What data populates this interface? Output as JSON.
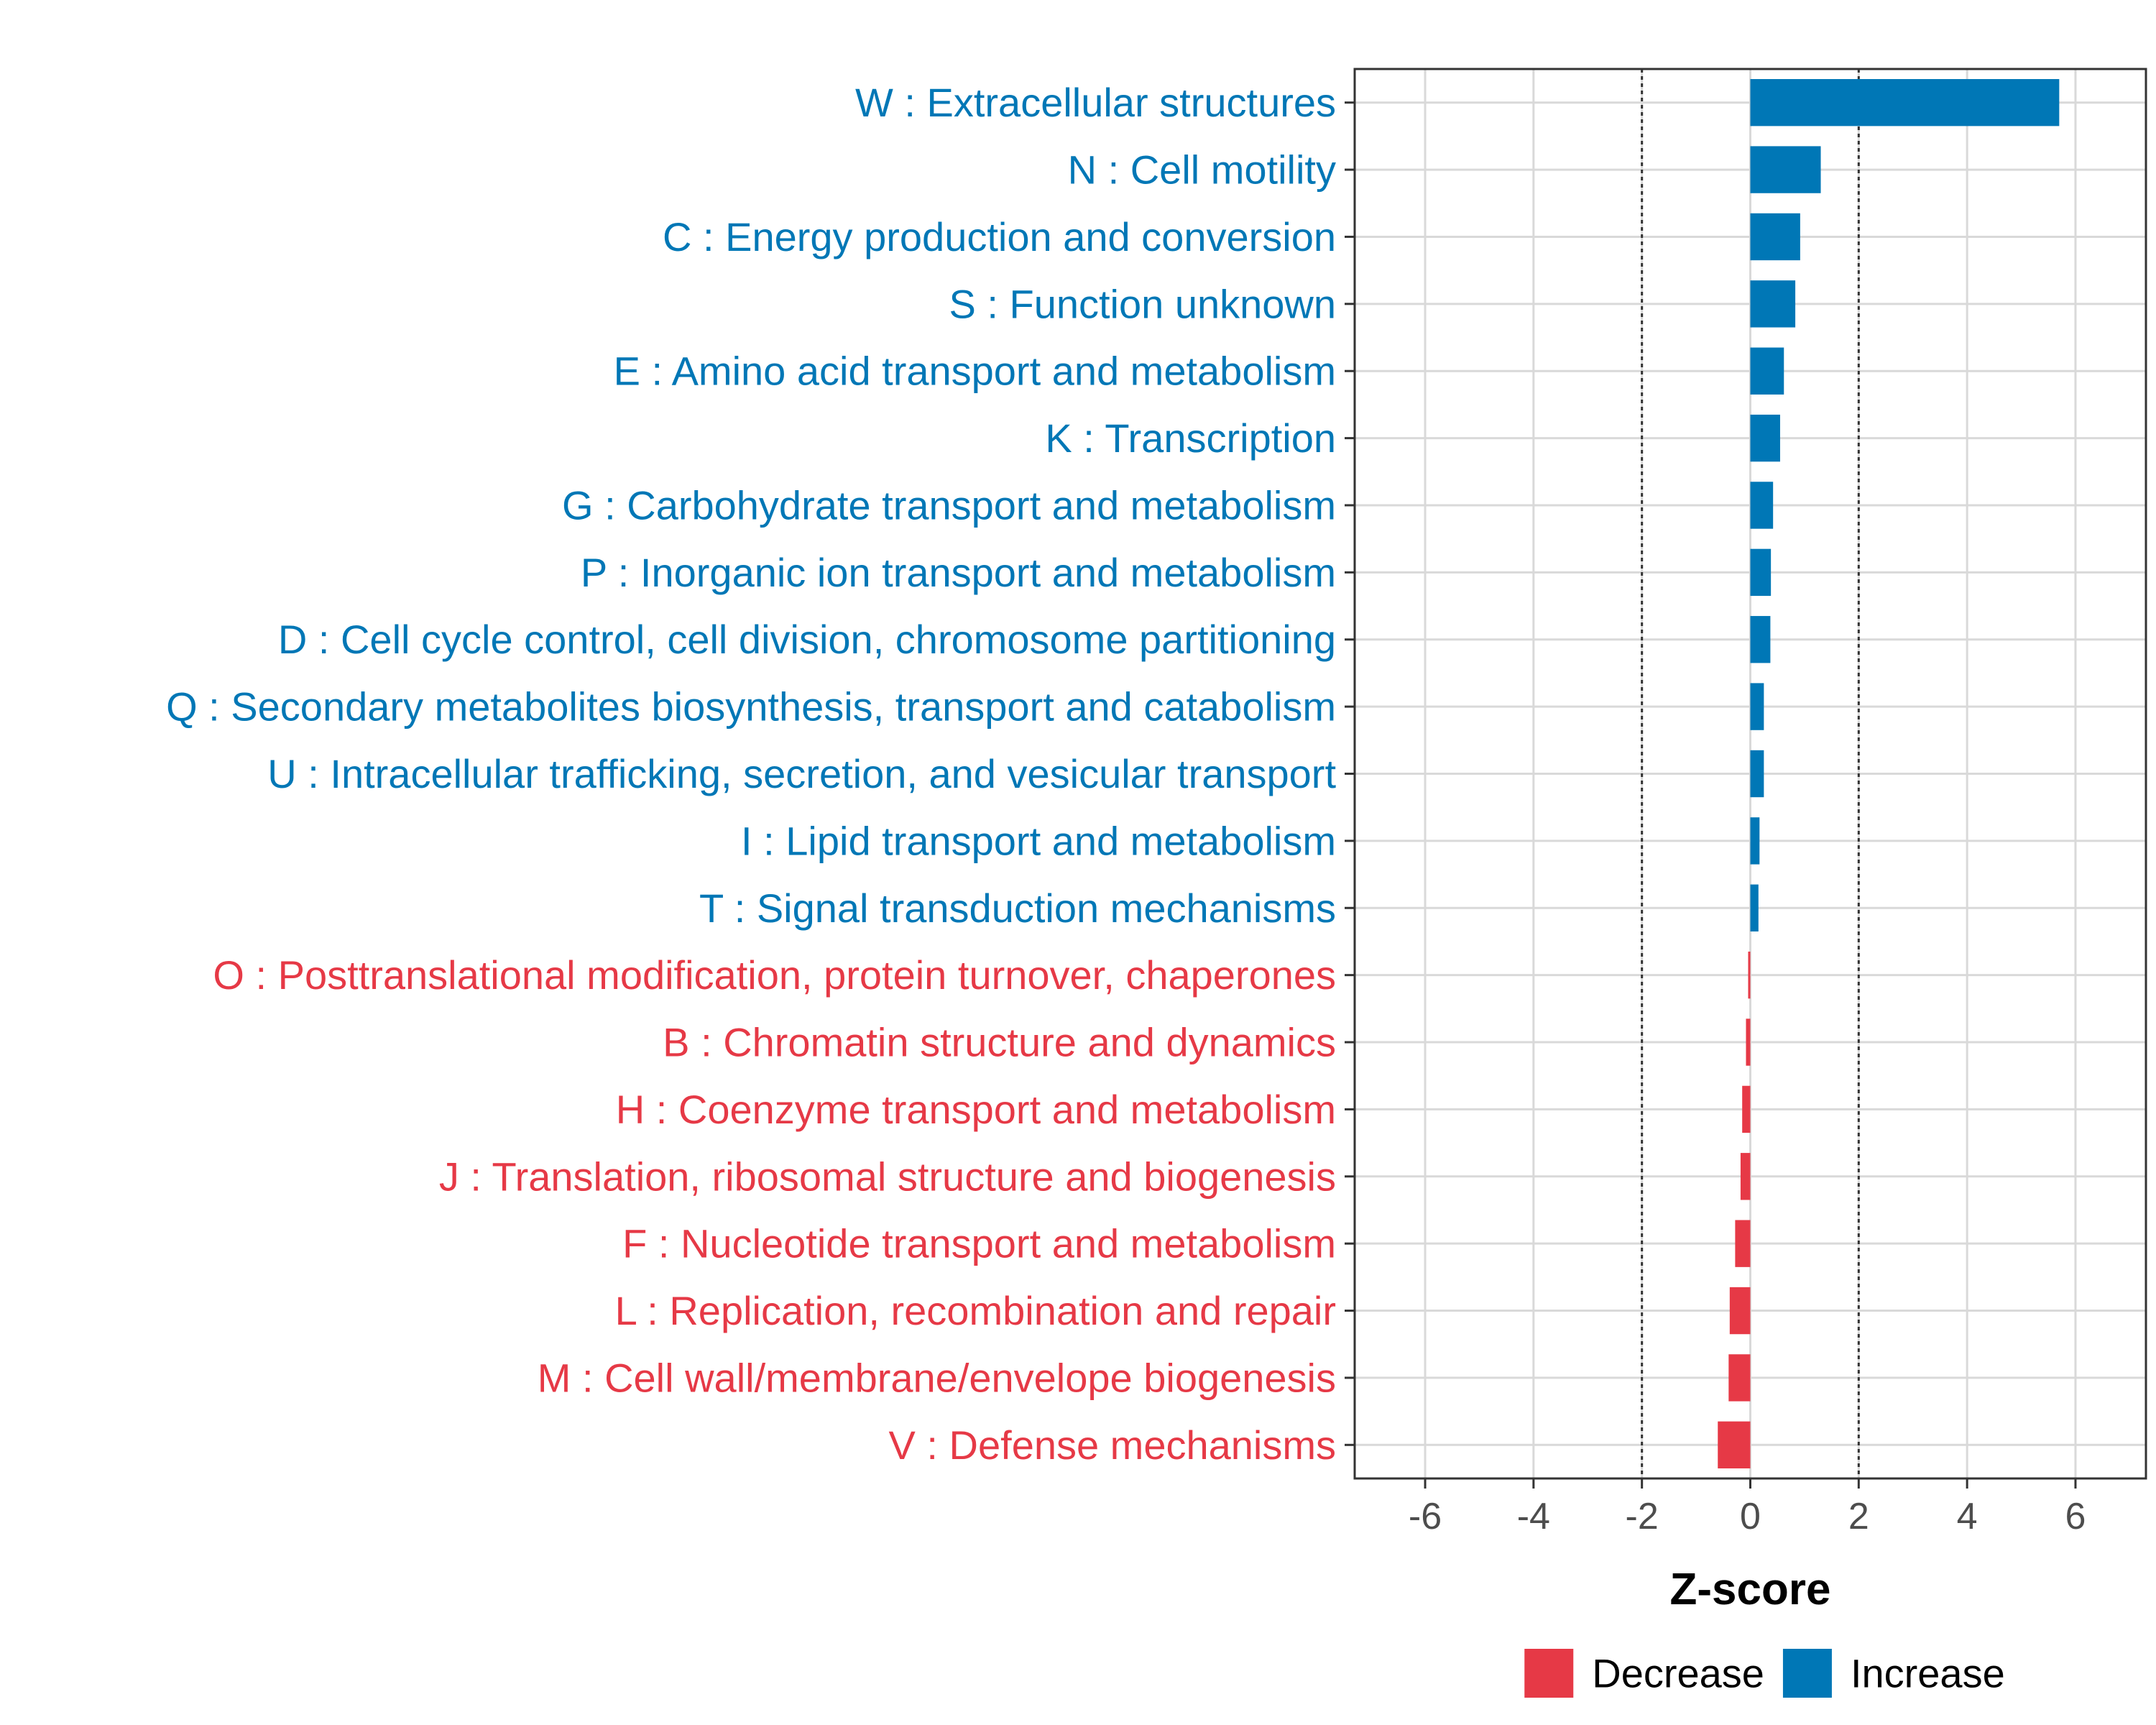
{
  "chart_data": {
    "type": "bar",
    "orientation": "horizontal",
    "xlabel": "Z-score",
    "xlim": [
      -7.3,
      7.3
    ],
    "xticks": [
      -6,
      -4,
      -2,
      0,
      2,
      4,
      6
    ],
    "xtick_labels": [
      "-6",
      "-4",
      "-2",
      "0",
      "2",
      "4",
      "6"
    ],
    "reference_lines": [
      -2,
      2
    ],
    "grid": true,
    "legend": {
      "position": "bottom",
      "entries": [
        {
          "label": "Decrease",
          "color": "#E63946"
        },
        {
          "label": "Increase",
          "color": "#0077B6"
        }
      ]
    },
    "colors": {
      "Decrease": "#E63946",
      "Increase": "#0077B6"
    },
    "categories": [
      "W : Extracellular structures",
      "N : Cell motility",
      "C : Energy production and conversion",
      "S : Function unknown",
      "E : Amino acid transport and metabolism",
      "K : Transcription",
      "G : Carbohydrate transport and metabolism",
      "P : Inorganic ion transport and metabolism",
      "D : Cell cycle control, cell division, chromosome partitioning",
      "Q : Secondary metabolites biosynthesis, transport and catabolism",
      "U : Intracellular trafficking, secretion, and vesicular transport",
      "I : Lipid transport and metabolism",
      "T : Signal transduction mechanisms",
      "O : Posttranslational modification, protein turnover, chaperones",
      "B : Chromatin structure and dynamics",
      "H : Coenzyme transport and metabolism",
      "J : Translation, ribosomal structure and biogenesis",
      "F : Nucleotide transport and metabolism",
      "L : Replication, recombination and repair",
      "M : Cell wall/membrane/envelope biogenesis",
      "V : Defense mechanisms"
    ],
    "values": [
      5.7,
      1.3,
      0.92,
      0.83,
      0.62,
      0.55,
      0.42,
      0.38,
      0.37,
      0.25,
      0.25,
      0.17,
      0.15,
      -0.04,
      -0.08,
      -0.15,
      -0.18,
      -0.28,
      -0.38,
      -0.4,
      -0.6
    ],
    "groups": [
      "Increase",
      "Increase",
      "Increase",
      "Increase",
      "Increase",
      "Increase",
      "Increase",
      "Increase",
      "Increase",
      "Increase",
      "Increase",
      "Increase",
      "Increase",
      "Decrease",
      "Decrease",
      "Decrease",
      "Decrease",
      "Decrease",
      "Decrease",
      "Decrease",
      "Decrease"
    ]
  }
}
